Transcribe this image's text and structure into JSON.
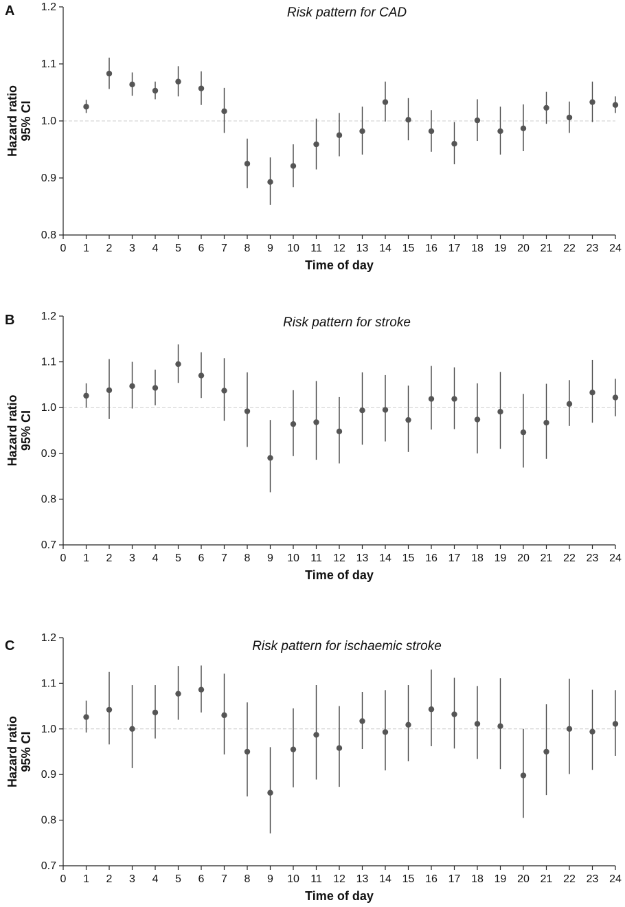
{
  "colors": {
    "marker": "#555555",
    "errorbar": "#444444",
    "axis": "#222222",
    "reference_line": "#cccccc"
  },
  "chart_data": [
    {
      "type": "scatter",
      "panel": "A",
      "title": "Risk pattern for CAD",
      "xlabel": "Time of day",
      "ylabel": [
        "Hazard ratio",
        "95% CI"
      ],
      "xlim": [
        0,
        24
      ],
      "ylim": [
        0.8,
        1.2
      ],
      "xticks": [
        "0",
        "1",
        "2",
        "3",
        "4",
        "5",
        "6",
        "7",
        "8",
        "9",
        "10",
        "11",
        "12",
        "13",
        "14",
        "15",
        "16",
        "17",
        "18",
        "19",
        "20",
        "21",
        "22",
        "23",
        "24"
      ],
      "yticks": [
        "0.8",
        "0.9",
        "1.0",
        "1.1",
        "1.2"
      ],
      "reference_line": 1.0,
      "x": [
        1,
        2,
        3,
        4,
        5,
        6,
        7,
        8,
        9,
        10,
        11,
        12,
        13,
        14,
        15,
        16,
        17,
        18,
        19,
        20,
        21,
        22,
        23,
        24
      ],
      "values": [
        1.025,
        1.083,
        1.064,
        1.053,
        1.069,
        1.057,
        1.017,
        0.925,
        0.893,
        0.921,
        0.959,
        0.975,
        0.982,
        1.033,
        1.002,
        0.982,
        0.96,
        1.001,
        0.982,
        0.987,
        1.023,
        1.006,
        1.033,
        1.028
      ],
      "lower": [
        1.014,
        1.056,
        1.044,
        1.038,
        1.043,
        1.028,
        0.979,
        0.882,
        0.853,
        0.884,
        0.915,
        0.938,
        0.941,
        0.999,
        0.966,
        0.946,
        0.924,
        0.965,
        0.941,
        0.947,
        0.995,
        0.979,
        0.998,
        1.014
      ],
      "upper": [
        1.037,
        1.111,
        1.085,
        1.069,
        1.096,
        1.087,
        1.058,
        0.969,
        0.936,
        0.959,
        1.004,
        1.014,
        1.025,
        1.069,
        1.04,
        1.019,
        0.998,
        1.038,
        1.025,
        1.029,
        1.051,
        1.034,
        1.069,
        1.043
      ]
    },
    {
      "type": "scatter",
      "panel": "B",
      "title": "Risk pattern for stroke",
      "xlabel": "Time of day",
      "ylabel": [
        "Hazard ratio",
        "95% CI"
      ],
      "xlim": [
        0,
        24
      ],
      "ylim": [
        0.7,
        1.2
      ],
      "xticks": [
        "0",
        "1",
        "2",
        "3",
        "4",
        "5",
        "6",
        "7",
        "8",
        "9",
        "10",
        "11",
        "12",
        "13",
        "14",
        "15",
        "16",
        "17",
        "18",
        "19",
        "20",
        "21",
        "22",
        "23",
        "24"
      ],
      "yticks": [
        "0.7",
        "0.8",
        "0.9",
        "1.0",
        "1.1",
        "1.2"
      ],
      "reference_line": 1.0,
      "x": [
        1,
        2,
        3,
        4,
        5,
        6,
        7,
        8,
        9,
        10,
        11,
        12,
        13,
        14,
        15,
        16,
        17,
        18,
        19,
        20,
        21,
        22,
        23,
        24
      ],
      "values": [
        1.026,
        1.038,
        1.047,
        1.043,
        1.095,
        1.07,
        1.037,
        0.992,
        0.89,
        0.964,
        0.968,
        0.948,
        0.994,
        0.995,
        0.973,
        1.019,
        1.019,
        0.974,
        0.991,
        0.946,
        0.967,
        1.008,
        1.033,
        1.022
      ],
      "lower": [
        1.0,
        0.975,
        0.998,
        1.005,
        1.054,
        1.021,
        0.971,
        0.914,
        0.815,
        0.894,
        0.886,
        0.878,
        0.919,
        0.926,
        0.903,
        0.952,
        0.953,
        0.9,
        0.91,
        0.869,
        0.888,
        0.96,
        0.967,
        0.981
      ],
      "upper": [
        1.053,
        1.106,
        1.1,
        1.083,
        1.138,
        1.121,
        1.108,
        1.077,
        0.973,
        1.038,
        1.058,
        1.023,
        1.077,
        1.071,
        1.048,
        1.091,
        1.088,
        1.053,
        1.078,
        1.03,
        1.052,
        1.06,
        1.104,
        1.063
      ]
    },
    {
      "type": "scatter",
      "panel": "C",
      "title": "Risk pattern for ischaemic stroke",
      "xlabel": "Time of day",
      "ylabel": [
        "Hazard ratio",
        "95% CI"
      ],
      "xlim": [
        0,
        24
      ],
      "ylim": [
        0.7,
        1.2
      ],
      "xticks": [
        "0",
        "1",
        "2",
        "3",
        "4",
        "5",
        "6",
        "7",
        "8",
        "9",
        "10",
        "11",
        "12",
        "13",
        "14",
        "15",
        "16",
        "17",
        "18",
        "19",
        "20",
        "21",
        "22",
        "23",
        "24"
      ],
      "yticks": [
        "0.7",
        "0.8",
        "0.9",
        "1.0",
        "1.1",
        "1.2"
      ],
      "reference_line": 1.0,
      "x": [
        1,
        2,
        3,
        4,
        5,
        6,
        7,
        8,
        9,
        10,
        11,
        12,
        13,
        14,
        15,
        16,
        17,
        18,
        19,
        20,
        21,
        22,
        23,
        24
      ],
      "values": [
        1.026,
        1.042,
        1.0,
        1.036,
        1.077,
        1.086,
        1.03,
        0.95,
        0.86,
        0.955,
        0.987,
        0.958,
        1.017,
        0.993,
        1.009,
        1.043,
        1.032,
        1.011,
        1.006,
        0.898,
        0.95,
        1.0,
        0.994,
        1.011
      ],
      "lower": [
        0.992,
        0.966,
        0.914,
        0.979,
        1.02,
        1.036,
        0.944,
        0.852,
        0.771,
        0.872,
        0.889,
        0.873,
        0.956,
        0.909,
        0.929,
        0.962,
        0.957,
        0.934,
        0.912,
        0.805,
        0.855,
        0.901,
        0.91,
        0.941
      ],
      "upper": [
        1.062,
        1.125,
        1.096,
        1.096,
        1.138,
        1.139,
        1.121,
        1.058,
        0.96,
        1.045,
        1.096,
        1.05,
        1.081,
        1.085,
        1.096,
        1.13,
        1.112,
        1.094,
        1.111,
        1.0,
        1.054,
        1.11,
        1.086,
        1.085
      ]
    }
  ]
}
